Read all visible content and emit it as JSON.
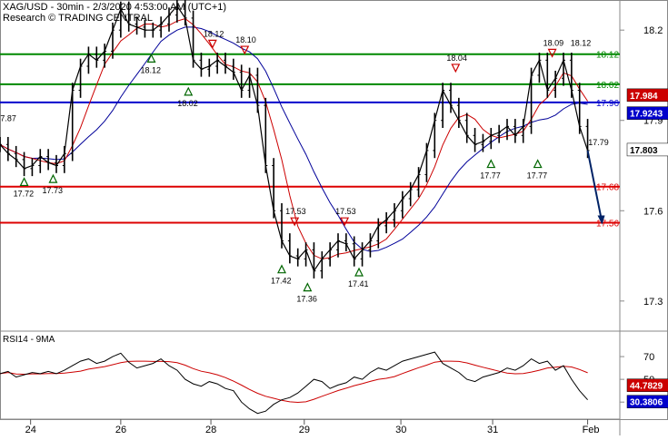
{
  "header": {
    "symbol_line": "XAG/USD - 30min - 2/3/2020 4:53:00 AM (UTC+1)",
    "source_line": "Research © TRADING CENTRAL"
  },
  "colors": {
    "support": "#dd0000",
    "resistance": "#008800",
    "pivot": "#0000cc",
    "price": "#000000",
    "ma_fast": "#cc0000",
    "ma_slow": "#000099",
    "arrow": "#002266"
  },
  "chart_data": [
    {
      "type": "line",
      "panel": "price",
      "ylim": [
        17.2,
        18.3
      ],
      "y_ticks": [
        17.3,
        17.6,
        17.9,
        18.2
      ],
      "x_ticks": [
        "24",
        "26",
        "28",
        "29",
        "30",
        "31",
        "Feb"
      ],
      "levels": [
        {
          "value": 18.12,
          "label": "18.12",
          "color": "#008800"
        },
        {
          "value": 18.02,
          "label": "18.02",
          "color": "#008800"
        },
        {
          "value": 17.96,
          "label": "17.96",
          "color": "#0000cc"
        },
        {
          "value": 17.68,
          "label": "17.68",
          "color": "#dd0000"
        },
        {
          "value": 17.56,
          "label": "17.56",
          "color": "#dd0000"
        }
      ],
      "last_price": {
        "value": 17.803,
        "label": "17.803"
      },
      "ma_tags": [
        {
          "value": 17.984,
          "label": "17.984",
          "color": "#cc0000"
        },
        {
          "value": 17.9243,
          "label": "17.9243",
          "color": "#0000cc"
        }
      ],
      "price_points": [
        [
          0.0,
          17.82
        ],
        [
          0.5,
          17.79
        ],
        [
          1.0,
          17.77
        ],
        [
          1.5,
          17.74
        ],
        [
          2.0,
          17.75
        ],
        [
          2.5,
          17.78
        ],
        [
          3.0,
          17.76
        ],
        [
          3.5,
          17.75
        ],
        [
          4.0,
          17.79
        ],
        [
          4.5,
          18.0
        ],
        [
          5.0,
          18.08
        ],
        [
          5.5,
          18.12
        ],
        [
          6.0,
          18.1
        ],
        [
          6.5,
          18.13
        ],
        [
          7.0,
          18.2
        ],
        [
          7.5,
          18.27
        ],
        [
          8.0,
          18.22
        ],
        [
          8.5,
          18.21
        ],
        [
          9.0,
          18.2
        ],
        [
          9.5,
          18.2
        ],
        [
          10.0,
          18.22
        ],
        [
          10.5,
          18.25
        ],
        [
          11.0,
          18.28
        ],
        [
          11.5,
          18.24
        ],
        [
          12.0,
          18.1
        ],
        [
          12.5,
          18.07
        ],
        [
          13.0,
          18.08
        ],
        [
          13.5,
          18.1
        ],
        [
          14.0,
          18.08
        ],
        [
          14.5,
          18.06
        ],
        [
          15.0,
          18.0
        ],
        [
          15.5,
          18.05
        ],
        [
          16.0,
          17.95
        ],
        [
          16.5,
          17.75
        ],
        [
          17.0,
          17.6
        ],
        [
          17.5,
          17.5
        ],
        [
          18.0,
          17.45
        ],
        [
          18.5,
          17.44
        ],
        [
          19.0,
          17.47
        ],
        [
          19.5,
          17.4
        ],
        [
          20.0,
          17.44
        ],
        [
          20.5,
          17.47
        ],
        [
          21.0,
          17.5
        ],
        [
          21.5,
          17.49
        ],
        [
          22.0,
          17.44
        ],
        [
          22.5,
          17.47
        ],
        [
          23.0,
          17.5
        ],
        [
          23.5,
          17.55
        ],
        [
          24.0,
          17.57
        ],
        [
          24.5,
          17.6
        ],
        [
          25.0,
          17.64
        ],
        [
          25.5,
          17.67
        ],
        [
          26.0,
          17.72
        ],
        [
          26.5,
          17.8
        ],
        [
          27.0,
          17.9
        ],
        [
          27.5,
          18.0
        ],
        [
          28.0,
          17.95
        ],
        [
          28.5,
          17.9
        ],
        [
          29.0,
          17.85
        ],
        [
          29.5,
          17.82
        ],
        [
          30.0,
          17.83
        ],
        [
          30.5,
          17.85
        ],
        [
          31.0,
          17.86
        ],
        [
          31.5,
          17.88
        ],
        [
          32.0,
          17.85
        ],
        [
          32.5,
          17.88
        ],
        [
          33.0,
          18.05
        ],
        [
          33.5,
          18.1
        ],
        [
          34.0,
          18.0
        ],
        [
          34.5,
          18.04
        ],
        [
          35.0,
          18.1
        ],
        [
          35.5,
          18.0
        ],
        [
          36.0,
          17.88
        ],
        [
          36.5,
          17.8
        ]
      ],
      "forecast": {
        "from": [
          36.5,
          17.8
        ],
        "to": [
          37.4,
          17.56
        ]
      },
      "markers": [
        {
          "label": "17.87",
          "x": 0.3,
          "y": 17.88,
          "dir": "none"
        },
        {
          "label": "17.72",
          "x": 1.5,
          "y": 17.72,
          "dir": "up"
        },
        {
          "label": "17.73",
          "x": 3.3,
          "y": 17.73,
          "dir": "up"
        },
        {
          "label": "18.12",
          "x": 9.4,
          "y": 18.13,
          "dir": "up"
        },
        {
          "label": "18.02",
          "x": 11.7,
          "y": 18.02,
          "dir": "up"
        },
        {
          "label": "18.12",
          "x": 13.2,
          "y": 18.13,
          "dir": "down"
        },
        {
          "label": "18.10",
          "x": 15.2,
          "y": 18.11,
          "dir": "down"
        },
        {
          "label": "17.42",
          "x": 17.5,
          "y": 17.43,
          "dir": "up"
        },
        {
          "label": "17.53",
          "x": 18.3,
          "y": 17.54,
          "dir": "down"
        },
        {
          "label": "17.36",
          "x": 19.1,
          "y": 17.37,
          "dir": "up"
        },
        {
          "label": "17.53",
          "x": 21.4,
          "y": 17.54,
          "dir": "down"
        },
        {
          "label": "17.41",
          "x": 22.3,
          "y": 17.42,
          "dir": "up"
        },
        {
          "label": "18.04",
          "x": 28.3,
          "y": 18.05,
          "dir": "down"
        },
        {
          "label": "17.77",
          "x": 30.5,
          "y": 17.78,
          "dir": "up"
        },
        {
          "label": "17.77",
          "x": 33.4,
          "y": 17.78,
          "dir": "up"
        },
        {
          "label": "18.09",
          "x": 34.3,
          "y": 18.1,
          "dir": "down"
        },
        {
          "label": "18.12",
          "x": 36.0,
          "y": 18.13,
          "dir": "none"
        },
        {
          "label": "17.79",
          "x": 37.1,
          "y": 17.8,
          "dir": "none"
        }
      ]
    },
    {
      "type": "line",
      "panel": "rsi",
      "title": "RSI14 - 9MA",
      "ylim": [
        15,
        90
      ],
      "y_ticks": [
        30,
        50,
        70
      ],
      "last_values": [
        {
          "value": 44.7829,
          "label": "44.7829",
          "color": "#cc0000"
        },
        {
          "value": 30.3806,
          "label": "30.3806",
          "color": "#0000cc"
        }
      ],
      "rsi_points": [
        [
          0.0,
          55
        ],
        [
          0.5,
          57
        ],
        [
          1.0,
          52
        ],
        [
          1.5,
          54
        ],
        [
          2.0,
          56
        ],
        [
          2.5,
          55
        ],
        [
          3.0,
          57
        ],
        [
          3.5,
          55
        ],
        [
          4.0,
          58
        ],
        [
          4.5,
          62
        ],
        [
          5.0,
          66
        ],
        [
          5.5,
          68
        ],
        [
          6.0,
          64
        ],
        [
          6.5,
          66
        ],
        [
          7.0,
          70
        ],
        [
          7.5,
          73
        ],
        [
          8.0,
          65
        ],
        [
          8.5,
          60
        ],
        [
          9.0,
          62
        ],
        [
          9.5,
          64
        ],
        [
          10.0,
          68
        ],
        [
          10.5,
          62
        ],
        [
          11.0,
          58
        ],
        [
          11.5,
          50
        ],
        [
          12.0,
          46
        ],
        [
          12.5,
          44
        ],
        [
          13.0,
          48
        ],
        [
          13.5,
          46
        ],
        [
          14.0,
          42
        ],
        [
          14.5,
          40
        ],
        [
          15.0,
          30
        ],
        [
          15.5,
          24
        ],
        [
          16.0,
          20
        ],
        [
          16.5,
          22
        ],
        [
          17.0,
          28
        ],
        [
          17.5,
          32
        ],
        [
          18.0,
          34
        ],
        [
          18.5,
          38
        ],
        [
          19.0,
          44
        ],
        [
          19.5,
          50
        ],
        [
          20.0,
          48
        ],
        [
          20.5,
          42
        ],
        [
          21.0,
          45
        ],
        [
          21.5,
          47
        ],
        [
          22.0,
          52
        ],
        [
          22.5,
          50
        ],
        [
          23.0,
          56
        ],
        [
          23.5,
          60
        ],
        [
          24.0,
          58
        ],
        [
          24.5,
          62
        ],
        [
          25.0,
          66
        ],
        [
          25.5,
          68
        ],
        [
          26.0,
          70
        ],
        [
          26.5,
          72
        ],
        [
          27.0,
          74
        ],
        [
          27.5,
          64
        ],
        [
          28.0,
          60
        ],
        [
          28.5,
          56
        ],
        [
          29.0,
          50
        ],
        [
          29.5,
          48
        ],
        [
          30.0,
          52
        ],
        [
          30.5,
          54
        ],
        [
          31.0,
          56
        ],
        [
          31.5,
          60
        ],
        [
          32.0,
          58
        ],
        [
          32.5,
          62
        ],
        [
          33.0,
          68
        ],
        [
          33.5,
          64
        ],
        [
          34.0,
          66
        ],
        [
          34.5,
          58
        ],
        [
          35.0,
          62
        ],
        [
          35.5,
          50
        ],
        [
          36.0,
          40
        ],
        [
          36.5,
          32
        ]
      ]
    }
  ]
}
